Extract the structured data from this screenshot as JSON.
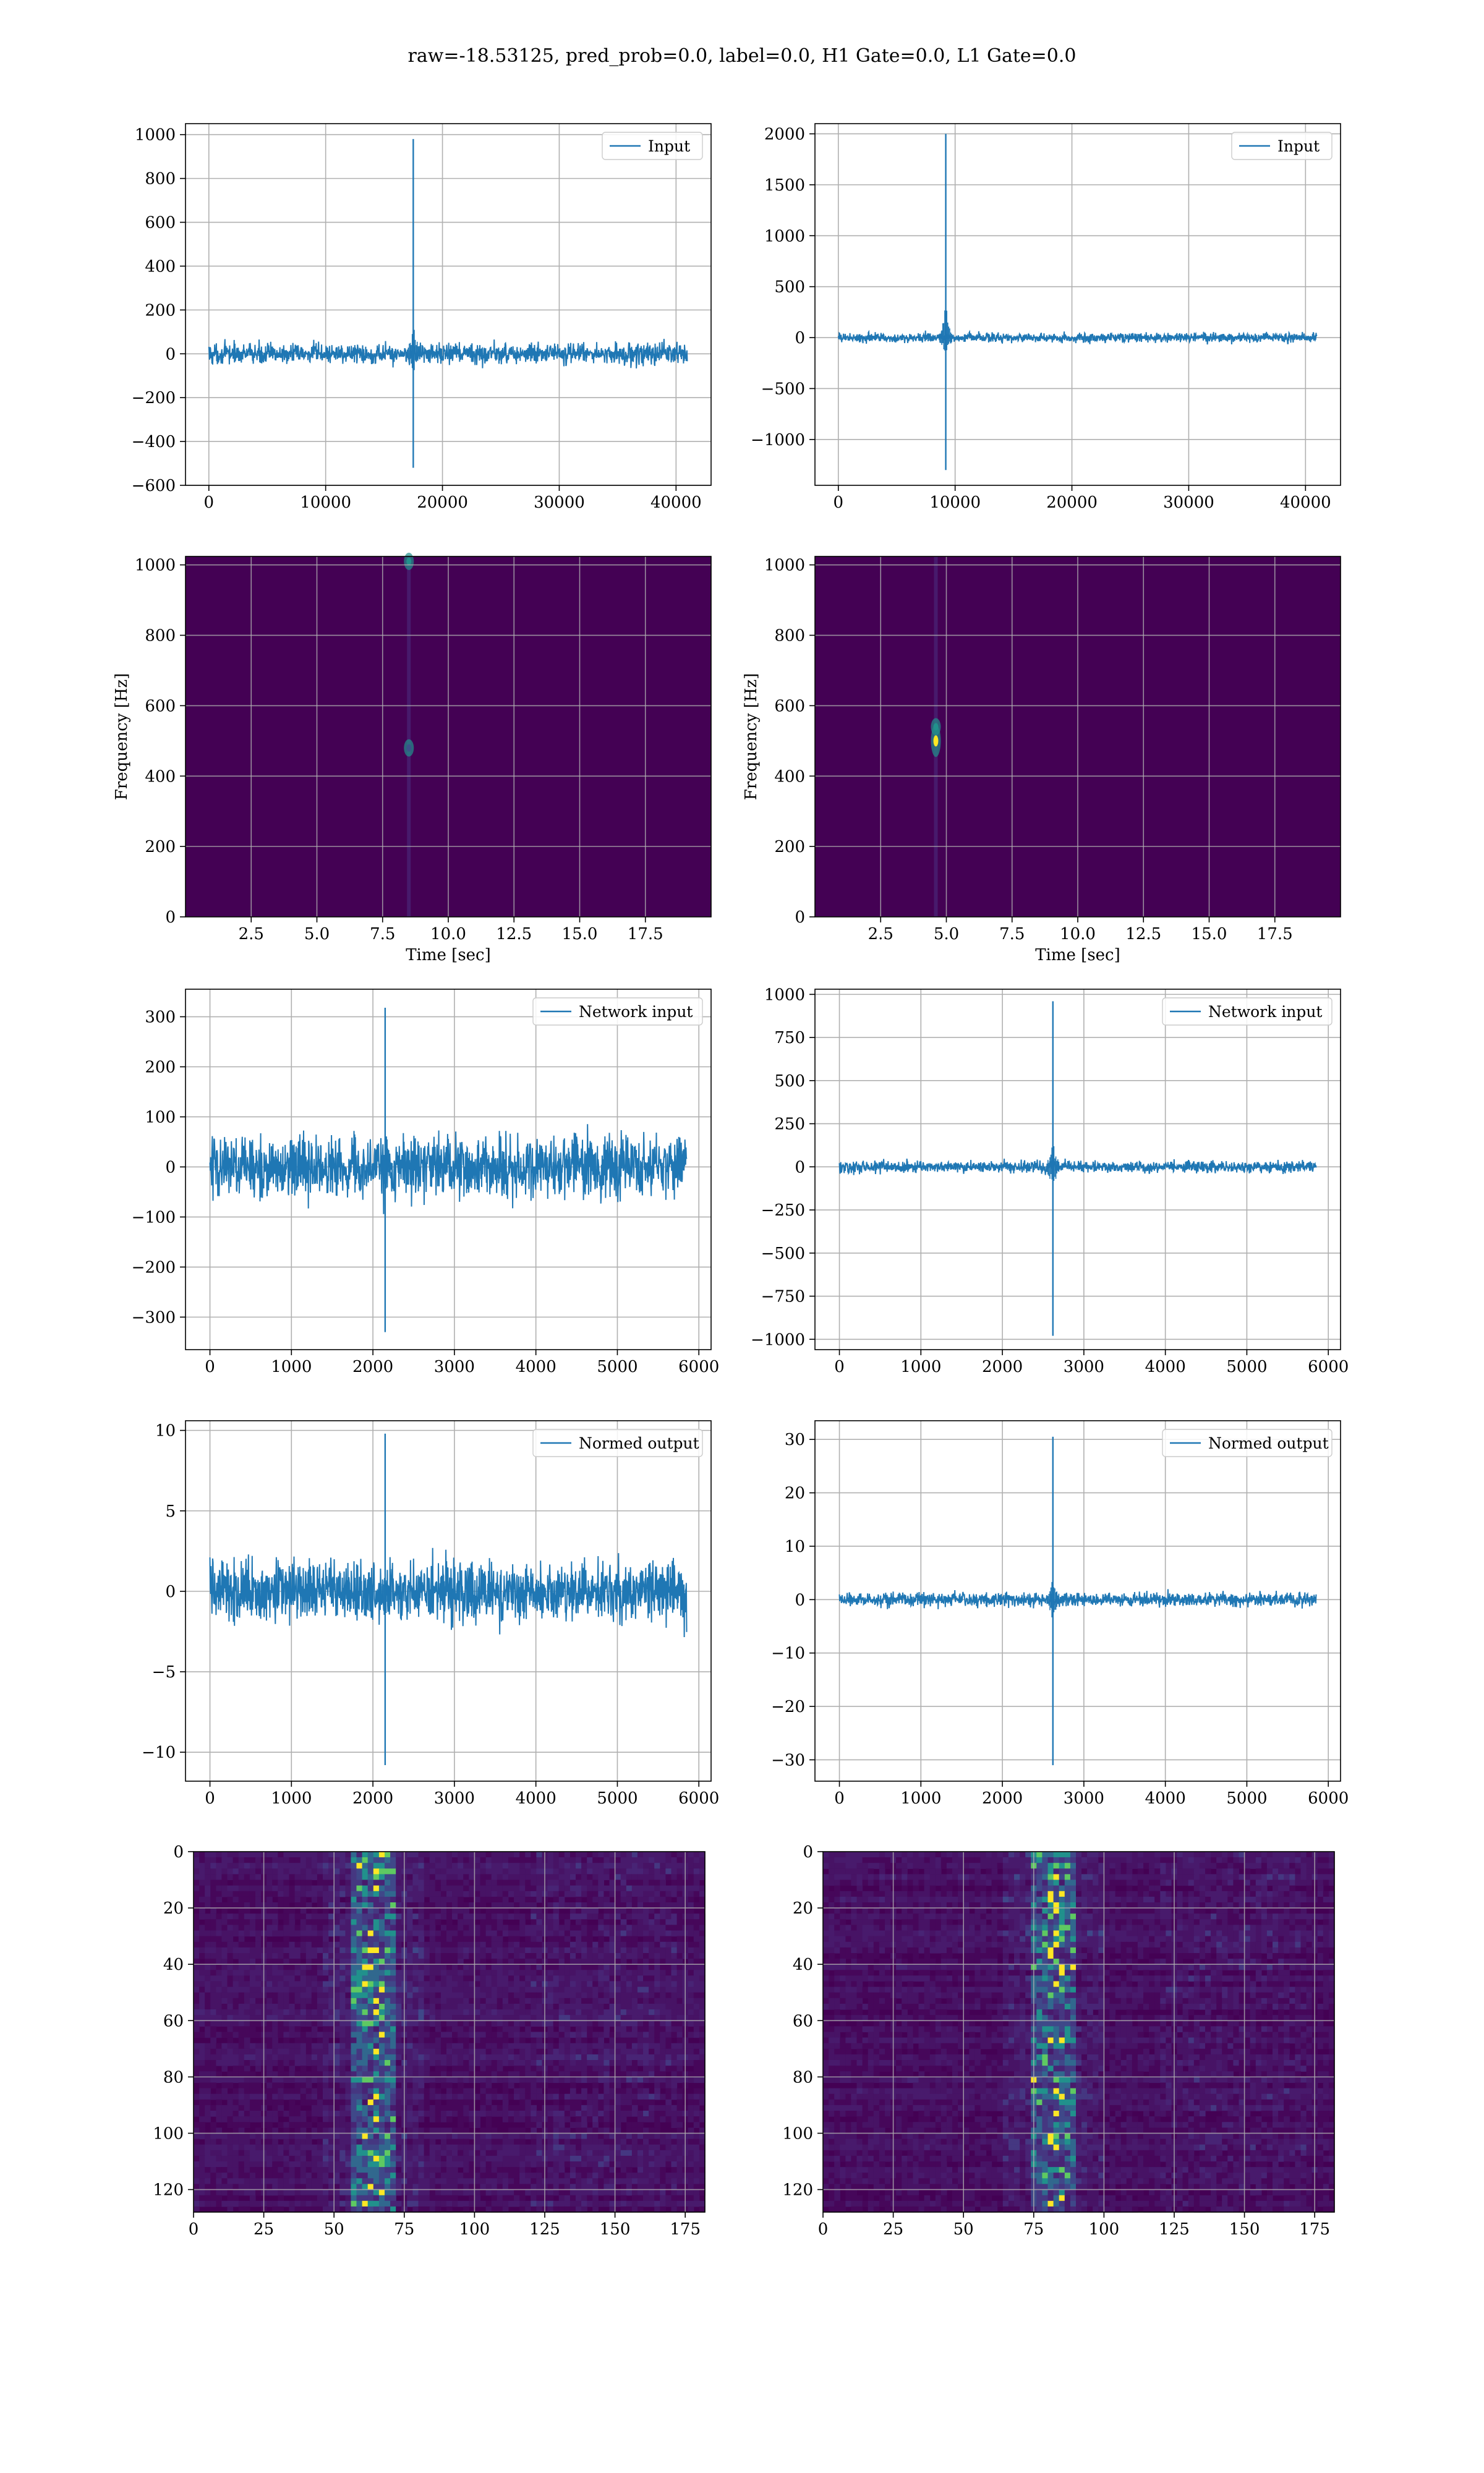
{
  "figure": {
    "suptitle": "raw=-18.53125, pred_prob=0.0, label=0.0, H1 Gate=0.0, L1 Gate=0.0"
  },
  "colors": {
    "line": "#1f77b4",
    "grid": "#b0b0b0",
    "viridis_bg": "#440154",
    "viridis_mid": "#21918c",
    "viridis_hi": "#5ec962",
    "viridis_peak": "#fde725"
  },
  "chart_data": [
    {
      "id": "input-h1",
      "type": "line",
      "legend": "Input",
      "legend_position": "upper-right",
      "xlim": [
        -2000,
        43000
      ],
      "ylim": [
        -600,
        1050
      ],
      "xticks": [
        0,
        10000,
        20000,
        30000,
        40000
      ],
      "yticks": [
        -600,
        -400,
        -200,
        0,
        200,
        400,
        600,
        800,
        1000
      ],
      "grid": true,
      "trace": {
        "x_start": 0,
        "x_end": 40960,
        "noise_band": [
          -75,
          75
        ],
        "event_x": 17500,
        "event_peak": 980,
        "event_trough": -520
      }
    },
    {
      "id": "input-l1",
      "type": "line",
      "legend": "Input",
      "legend_position": "upper-right",
      "xlim": [
        -2000,
        43000
      ],
      "ylim": [
        -1450,
        2100
      ],
      "xticks": [
        0,
        10000,
        20000,
        30000,
        40000
      ],
      "yticks": [
        -1000,
        -500,
        0,
        500,
        1000,
        1500,
        2000
      ],
      "grid": true,
      "trace": {
        "x_start": 0,
        "x_end": 40960,
        "noise_band": [
          -75,
          75
        ],
        "event_x": 9200,
        "event_peak": 2000,
        "event_trough": -1300
      }
    },
    {
      "id": "spectrogram-h1",
      "type": "heatmap",
      "xlabel": "Time [sec]",
      "ylabel": "Frequency [Hz]",
      "xlim": [
        0,
        20
      ],
      "ylim": [
        0,
        1024
      ],
      "xticks": [
        2.5,
        5.0,
        7.5,
        10.0,
        12.5,
        15.0,
        17.5
      ],
      "yticks": [
        0,
        200,
        400,
        600,
        800,
        1000
      ],
      "xticklabels": [
        "2.5",
        "5.0",
        "7.5",
        "10.0",
        "12.5",
        "15.0",
        "17.5"
      ],
      "grid": true,
      "hotspots": [
        {
          "t": 8.5,
          "f": 1010,
          "level": "mid"
        },
        {
          "t": 8.5,
          "f": 480,
          "level": "low"
        }
      ]
    },
    {
      "id": "spectrogram-l1",
      "type": "heatmap",
      "xlabel": "Time [sec]",
      "ylabel": "Frequency [Hz]",
      "xlim": [
        0,
        20
      ],
      "ylim": [
        0,
        1024
      ],
      "xticks": [
        2.5,
        5.0,
        7.5,
        10.0,
        12.5,
        15.0,
        17.5
      ],
      "yticks": [
        0,
        200,
        400,
        600,
        800,
        1000
      ],
      "xticklabels": [
        "2.5",
        "5.0",
        "7.5",
        "10.0",
        "12.5",
        "15.0",
        "17.5"
      ],
      "grid": true,
      "hotspots": [
        {
          "t": 4.6,
          "f": 500,
          "level": "peak"
        },
        {
          "t": 4.6,
          "f": 540,
          "level": "mid"
        }
      ]
    },
    {
      "id": "network-input-h1",
      "type": "line",
      "legend": "Network input",
      "legend_position": "upper-right",
      "xlim": [
        -300,
        6150
      ],
      "ylim": [
        -365,
        355
      ],
      "xticks": [
        0,
        1000,
        2000,
        3000,
        4000,
        5000,
        6000
      ],
      "yticks": [
        -300,
        -200,
        -100,
        0,
        100,
        200,
        300
      ],
      "grid": true,
      "trace": {
        "x_start": 0,
        "x_end": 5850,
        "noise_band": [
          -100,
          100
        ],
        "event_x": 2150,
        "event_peak": 318,
        "event_trough": -330
      }
    },
    {
      "id": "network-input-l1",
      "type": "line",
      "legend": "Network input",
      "legend_position": "upper-right",
      "xlim": [
        -300,
        6150
      ],
      "ylim": [
        -1060,
        1030
      ],
      "xticks": [
        0,
        1000,
        2000,
        3000,
        4000,
        5000,
        6000
      ],
      "yticks": [
        -1000,
        -750,
        -500,
        -250,
        0,
        250,
        500,
        750,
        1000
      ],
      "grid": true,
      "trace": {
        "x_start": 0,
        "x_end": 5850,
        "noise_band": [
          -55,
          55
        ],
        "event_x": 2620,
        "event_peak": 960,
        "event_trough": -980
      }
    },
    {
      "id": "normed-output-h1",
      "type": "line",
      "legend": "Normed output",
      "legend_position": "upper-right",
      "xlim": [
        -300,
        6150
      ],
      "ylim": [
        -11.8,
        10.6
      ],
      "xticks": [
        0,
        1000,
        2000,
        3000,
        4000,
        5000,
        6000
      ],
      "yticks": [
        -10,
        -5,
        0,
        5,
        10
      ],
      "grid": true,
      "trace": {
        "x_start": 0,
        "x_end": 5850,
        "noise_band": [
          -3,
          3
        ],
        "event_x": 2150,
        "event_peak": 9.8,
        "event_trough": -10.8
      }
    },
    {
      "id": "normed-output-l1",
      "type": "line",
      "legend": "Normed output",
      "legend_position": "upper-right",
      "xlim": [
        -300,
        6150
      ],
      "ylim": [
        -34,
        33.5
      ],
      "xticks": [
        0,
        1000,
        2000,
        3000,
        4000,
        5000,
        6000
      ],
      "yticks": [
        -30,
        -20,
        -10,
        0,
        10,
        20,
        30
      ],
      "grid": true,
      "trace": {
        "x_start": 0,
        "x_end": 5850,
        "noise_band": [
          -2,
          2
        ],
        "event_x": 2620,
        "event_peak": 30.5,
        "event_trough": -31
      }
    },
    {
      "id": "feature-map-h1",
      "type": "heatmap",
      "xlim": [
        0,
        182
      ],
      "ylim": [
        128,
        0
      ],
      "y_inverted": true,
      "xticks": [
        0,
        25,
        50,
        75,
        100,
        125,
        150,
        175
      ],
      "yticks": [
        0,
        20,
        40,
        60,
        80,
        100,
        120
      ],
      "grid": true,
      "band_center_x": 64
    },
    {
      "id": "feature-map-l1",
      "type": "heatmap",
      "xlim": [
        0,
        182
      ],
      "ylim": [
        128,
        0
      ],
      "y_inverted": true,
      "xticks": [
        0,
        25,
        50,
        75,
        100,
        125,
        150,
        175
      ],
      "yticks": [
        0,
        20,
        40,
        60,
        80,
        100,
        120
      ],
      "grid": true,
      "band_center_x": 82
    }
  ]
}
